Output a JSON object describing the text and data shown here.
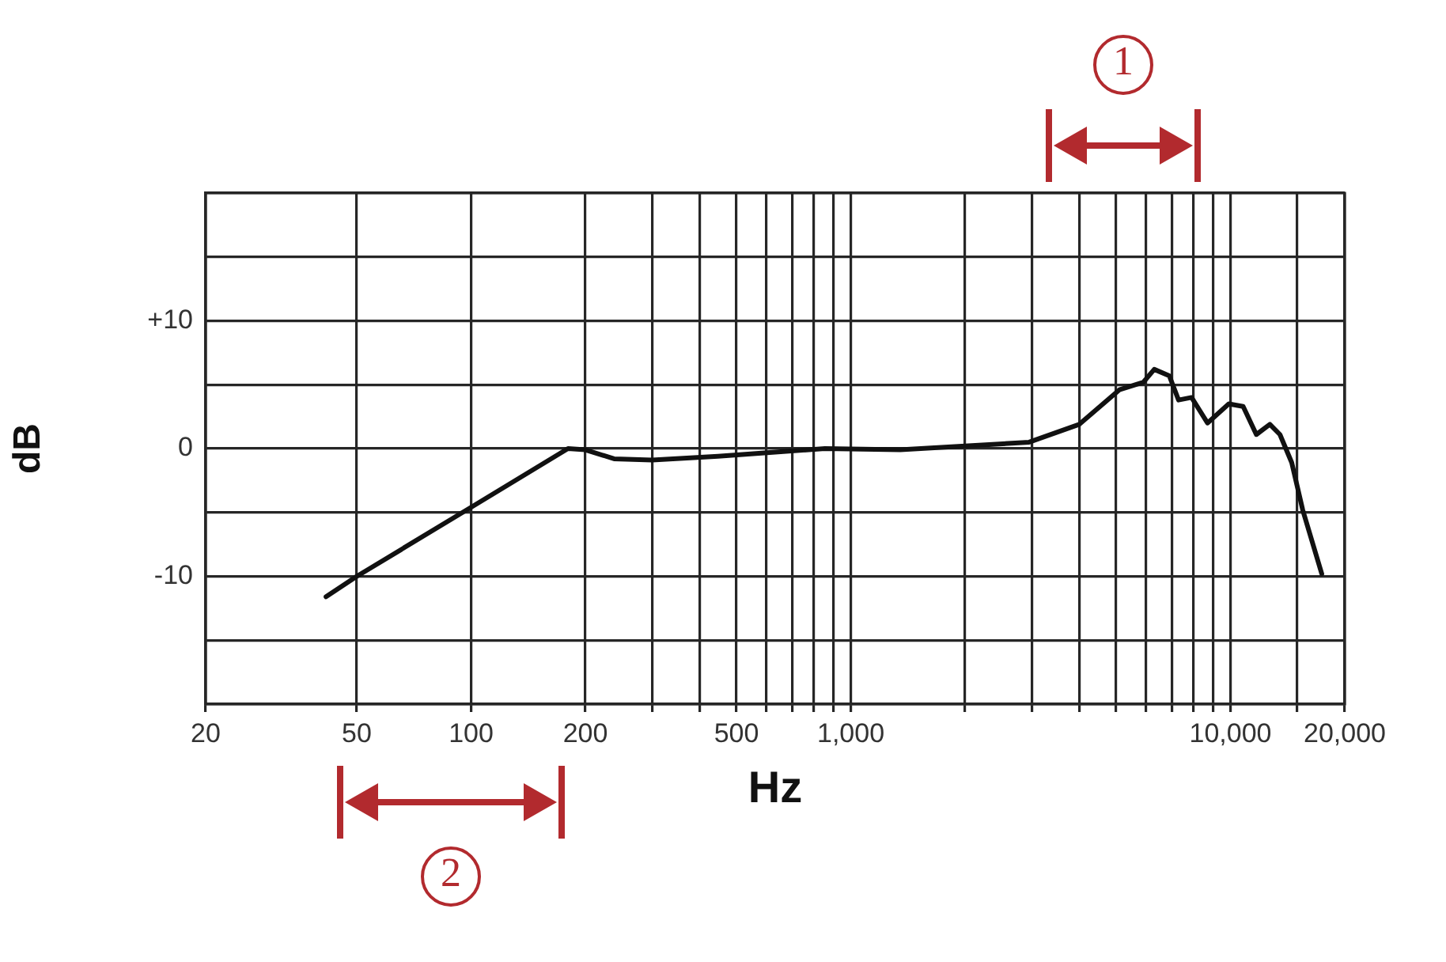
{
  "chart_data": {
    "type": "line",
    "xlabel": "Hz",
    "ylabel": "dB",
    "log": "x",
    "grid": true,
    "legend": false,
    "marker": "none",
    "line_style": "solid",
    "xlim": [
      20,
      20000
    ],
    "ylim": [
      -20,
      20
    ],
    "xticks": [
      20,
      50,
      100,
      200,
      {
        "value": 300,
        "label": null
      },
      {
        "value": 400,
        "label": null
      },
      500,
      {
        "value": 600,
        "label": null
      },
      {
        "value": 700,
        "label": null
      },
      {
        "value": 800,
        "label": null
      },
      {
        "value": 900,
        "label": null
      },
      {
        "value": 1000,
        "label": "1,000"
      },
      {
        "value": 2000,
        "label": null
      },
      {
        "value": 3000,
        "label": null
      },
      {
        "value": 4000,
        "label": null
      },
      {
        "value": 5000,
        "label": null
      },
      {
        "value": 6000,
        "label": null
      },
      {
        "value": 7000,
        "label": null
      },
      {
        "value": 8000,
        "label": null
      },
      {
        "value": 9000,
        "label": null
      },
      {
        "value": 10000,
        "label": "10,000"
      },
      {
        "value": 15000,
        "label": null
      },
      {
        "value": 20000,
        "label": "20,000"
      }
    ],
    "yticks": [
      {
        "value": -20,
        "label": null
      },
      {
        "value": -15,
        "label": null
      },
      -10,
      {
        "value": -5,
        "label": null
      },
      0,
      {
        "value": 5,
        "label": null
      },
      {
        "value": 10,
        "label": "+10"
      },
      {
        "value": 15,
        "label": null
      },
      {
        "value": 20,
        "label": null
      }
    ],
    "series": [
      {
        "color": "#111111",
        "x": [
          41.5,
          50,
          100,
          180,
          200,
          238,
          300,
          447,
          622,
          855,
          1350,
          2000,
          2950,
          4000,
          5100,
          5900,
          6300,
          6900,
          7300,
          7900,
          8700,
          9900,
          10800,
          11700,
          12700,
          13500,
          14500,
          15500,
          17400
        ],
        "values": [
          -11.6,
          -10,
          -4.6,
          0,
          -0.1,
          -0.8,
          -0.9,
          -0.6,
          -0.3,
          0,
          -0.1,
          0.2,
          0.5,
          1.9,
          4.6,
          5.2,
          6.2,
          5.7,
          3.8,
          4.0,
          2.0,
          3.5,
          3.3,
          1.1,
          1.9,
          1.1,
          -1.1,
          -4.8,
          -9.8
        ]
      }
    ],
    "annotations": [
      "1",
      "2"
    ]
  }
}
